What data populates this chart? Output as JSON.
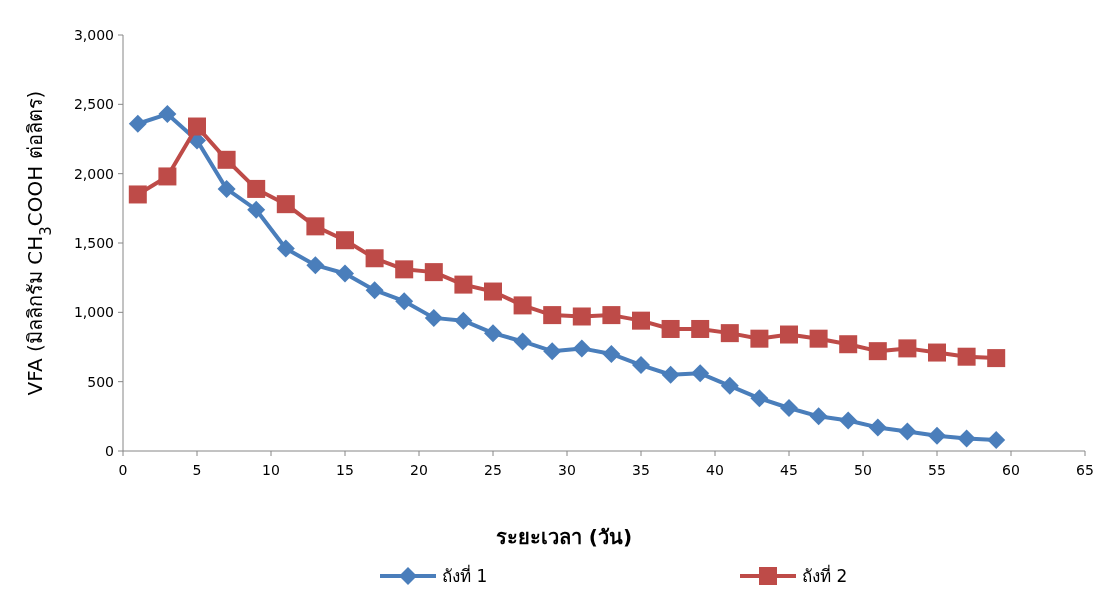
{
  "chart_data": {
    "type": "line",
    "xlabel": "ระยะเวลา (วัน)",
    "ylabel": "VFA (มิลลิกรัม CH$_{3}$COOH ต่อลิตร)",
    "xlim": [
      0,
      65
    ],
    "xticks": [
      0,
      5,
      10,
      15,
      20,
      25,
      30,
      35,
      40,
      45,
      50,
      55,
      60,
      65
    ],
    "ylim": [
      0,
      3000
    ],
    "yticks": [
      {
        "value": 0,
        "label": "0"
      },
      {
        "value": 500,
        "label": "500"
      },
      {
        "value": 1000,
        "label": "1,000"
      },
      {
        "value": 1500,
        "label": "1,500"
      },
      {
        "value": 2000,
        "label": "2,000"
      },
      {
        "value": 2500,
        "label": "2,500"
      },
      {
        "value": 3000,
        "label": "3,000"
      }
    ],
    "x": [
      1,
      3,
      5,
      7,
      9,
      11,
      13,
      15,
      17,
      19,
      21,
      23,
      25,
      27,
      29,
      31,
      33,
      35,
      37,
      39,
      41,
      43,
      45,
      47,
      49,
      51,
      53,
      55,
      57,
      59
    ],
    "grid": false,
    "legend": "bottom",
    "line_style": "solid",
    "series": [
      {
        "name": "ถังที่ 1",
        "color": "#4a7ebb",
        "marker": "diamond",
        "values": [
          2360,
          2430,
          2240,
          1890,
          1740,
          1460,
          1340,
          1280,
          1160,
          1080,
          960,
          940,
          850,
          790,
          720,
          740,
          700,
          620,
          550,
          560,
          470,
          380,
          310,
          250,
          220,
          170,
          140,
          110,
          90,
          80
        ]
      },
      {
        "name": "ถังที่ 2",
        "color": "#be4b48",
        "marker": "square",
        "values": [
          1850,
          1980,
          2340,
          2100,
          1890,
          1780,
          1620,
          1520,
          1390,
          1310,
          1290,
          1200,
          1150,
          1050,
          980,
          970,
          980,
          940,
          880,
          880,
          850,
          810,
          840,
          810,
          770,
          720,
          740,
          710,
          680,
          670
        ]
      }
    ]
  }
}
